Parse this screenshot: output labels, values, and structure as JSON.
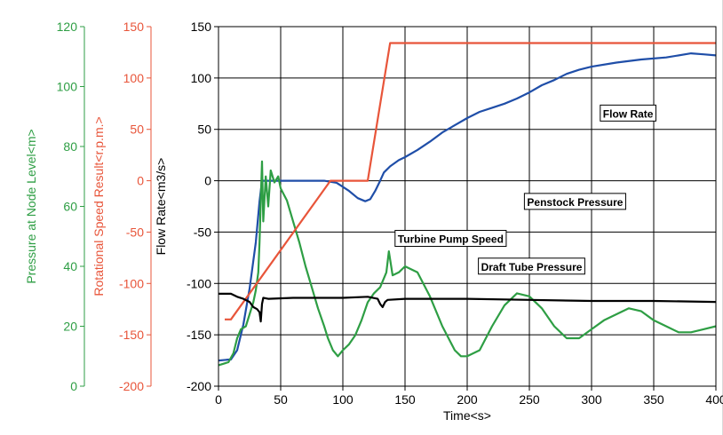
{
  "chart_data": {
    "type": "line",
    "title": "",
    "xlabel": "Time<s>",
    "xlim": [
      0,
      400
    ],
    "x_ticks": [
      "0",
      "50",
      "100",
      "150",
      "200",
      "250",
      "300",
      "350",
      "400"
    ],
    "grid": true,
    "axes": [
      {
        "id": "flow",
        "label": "Flow Rate<m3/s>",
        "ylim": [
          -200,
          150
        ],
        "ticks": [
          "150",
          "100",
          "50",
          "0",
          "-50",
          "-100",
          "-150",
          "-200"
        ],
        "color": "#000000"
      },
      {
        "id": "speed",
        "label": "Rotational Speed Result<r.p.m.>",
        "ylim": [
          -200,
          150
        ],
        "ticks": [
          "150",
          "100",
          "50",
          "0",
          "-50",
          "-100",
          "-150",
          "-200"
        ],
        "color": "#e8553a"
      },
      {
        "id": "pressure",
        "label": "Pressure at Node Level<m>",
        "ylim": [
          0,
          120
        ],
        "ticks": [
          "120",
          "100",
          "80",
          "60",
          "40",
          "20",
          "0"
        ],
        "color": "#2e9e44"
      }
    ],
    "series": [
      {
        "name": "Flow Rate",
        "axis": "flow",
        "color": "#1f4ea8",
        "points": [
          [
            0,
            -175
          ],
          [
            10,
            -174
          ],
          [
            15,
            -165
          ],
          [
            20,
            -140
          ],
          [
            25,
            -105
          ],
          [
            30,
            -60
          ],
          [
            33,
            -20
          ],
          [
            35,
            0
          ],
          [
            60,
            0
          ],
          [
            85,
            0
          ],
          [
            95,
            -2
          ],
          [
            105,
            -10
          ],
          [
            112,
            -17
          ],
          [
            118,
            -20
          ],
          [
            122,
            -18
          ],
          [
            126,
            -10
          ],
          [
            130,
            0
          ],
          [
            133,
            8
          ],
          [
            138,
            14
          ],
          [
            145,
            20
          ],
          [
            150,
            23
          ],
          [
            160,
            30
          ],
          [
            170,
            38
          ],
          [
            180,
            47
          ],
          [
            190,
            54
          ],
          [
            200,
            61
          ],
          [
            210,
            67
          ],
          [
            220,
            71
          ],
          [
            230,
            75
          ],
          [
            240,
            80
          ],
          [
            250,
            86
          ],
          [
            260,
            93
          ],
          [
            270,
            98
          ],
          [
            280,
            104
          ],
          [
            290,
            108
          ],
          [
            300,
            111
          ],
          [
            320,
            115
          ],
          [
            340,
            118
          ],
          [
            360,
            120
          ],
          [
            380,
            124
          ],
          [
            390,
            123
          ],
          [
            400,
            122
          ]
        ]
      },
      {
        "name": "Penstock Pressure",
        "axis": "pressure",
        "color": "#2e9e44",
        "points": [
          [
            0,
            7
          ],
          [
            8,
            8
          ],
          [
            12,
            11
          ],
          [
            15,
            16
          ],
          [
            18,
            19
          ],
          [
            22,
            20
          ],
          [
            25,
            24
          ],
          [
            28,
            28
          ],
          [
            30,
            32
          ],
          [
            32,
            38
          ],
          [
            33,
            48
          ],
          [
            34,
            62
          ],
          [
            35,
            75
          ],
          [
            36,
            55
          ],
          [
            38,
            70
          ],
          [
            40,
            60
          ],
          [
            42,
            72
          ],
          [
            45,
            68
          ],
          [
            48,
            70
          ],
          [
            50,
            66
          ],
          [
            55,
            62
          ],
          [
            60,
            55
          ],
          [
            65,
            48
          ],
          [
            70,
            40
          ],
          [
            75,
            33
          ],
          [
            80,
            26
          ],
          [
            85,
            20
          ],
          [
            88,
            16
          ],
          [
            92,
            12
          ],
          [
            96,
            10
          ],
          [
            100,
            12
          ],
          [
            105,
            14
          ],
          [
            110,
            17
          ],
          [
            115,
            22
          ],
          [
            120,
            28
          ],
          [
            125,
            31
          ],
          [
            130,
            33
          ],
          [
            135,
            38
          ],
          [
            137,
            45
          ],
          [
            140,
            37
          ],
          [
            145,
            38
          ],
          [
            150,
            40
          ],
          [
            160,
            38
          ],
          [
            170,
            30
          ],
          [
            180,
            20
          ],
          [
            190,
            12
          ],
          [
            195,
            10
          ],
          [
            200,
            10
          ],
          [
            210,
            12
          ],
          [
            220,
            20
          ],
          [
            230,
            27
          ],
          [
            240,
            31
          ],
          [
            250,
            30
          ],
          [
            260,
            26
          ],
          [
            270,
            20
          ],
          [
            280,
            16
          ],
          [
            290,
            16
          ],
          [
            300,
            19
          ],
          [
            310,
            22
          ],
          [
            320,
            24
          ],
          [
            330,
            26
          ],
          [
            340,
            25
          ],
          [
            350,
            22
          ],
          [
            360,
            20
          ],
          [
            370,
            18
          ],
          [
            380,
            18
          ],
          [
            390,
            19
          ],
          [
            400,
            20
          ]
        ]
      },
      {
        "name": "Turbine Pump Speed",
        "axis": "speed",
        "color": "#e8553a",
        "points": [
          [
            5,
            -135
          ],
          [
            10,
            -135
          ],
          [
            90,
            0
          ],
          [
            120,
            0
          ],
          [
            138,
            134
          ],
          [
            400,
            134
          ]
        ]
      },
      {
        "name": "Draft Tube Pressure",
        "axis": "flow",
        "color": "#000000",
        "points": [
          [
            0,
            -110
          ],
          [
            5,
            -110
          ],
          [
            10,
            -110
          ],
          [
            15,
            -113
          ],
          [
            20,
            -115
          ],
          [
            25,
            -118
          ],
          [
            28,
            -123
          ],
          [
            31,
            -125
          ],
          [
            33,
            -128
          ],
          [
            34,
            -137
          ],
          [
            35,
            -120
          ],
          [
            36,
            -114
          ],
          [
            40,
            -115
          ],
          [
            60,
            -114
          ],
          [
            80,
            -114
          ],
          [
            100,
            -114
          ],
          [
            120,
            -113
          ],
          [
            128,
            -115
          ],
          [
            130,
            -120
          ],
          [
            132,
            -123
          ],
          [
            134,
            -118
          ],
          [
            136,
            -116
          ],
          [
            150,
            -115
          ],
          [
            200,
            -115
          ],
          [
            250,
            -116
          ],
          [
            300,
            -117
          ],
          [
            350,
            -117
          ],
          [
            400,
            -118
          ]
        ]
      }
    ],
    "annotations": [
      {
        "text": "Flow Rate",
        "x": 307,
        "y": 65,
        "axis": "flow"
      },
      {
        "text": "Penstock Pressure",
        "x": 246,
        "y": -21,
        "axis": "flow"
      },
      {
        "text": "Turbine Pump Speed",
        "x": 142,
        "y": -57,
        "axis": "flow"
      },
      {
        "text": "Draft Tube Pressure",
        "x": 209,
        "y": -84,
        "axis": "flow"
      }
    ]
  }
}
